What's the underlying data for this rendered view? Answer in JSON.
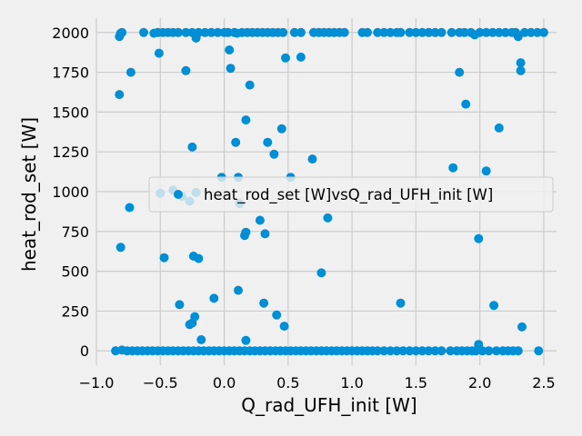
{
  "chart_data": {
    "type": "scatter",
    "title": "",
    "xlabel": "Q_rad_UFH_init [W]",
    "ylabel": "heat_rod_set [W]",
    "xlim": [
      -1.0,
      2.6
    ],
    "ylim": [
      -90,
      2090
    ],
    "xticks": [
      "−1.0",
      "−0.5",
      "0.0",
      "0.5",
      "1.0",
      "1.5",
      "2.0",
      "2.5"
    ],
    "xtick_values": [
      -1.0,
      -0.5,
      0.0,
      0.5,
      1.0,
      1.5,
      2.0,
      2.5
    ],
    "yticks": [
      "0",
      "250",
      "500",
      "750",
      "1000",
      "1250",
      "1500",
      "1750",
      "2000"
    ],
    "ytick_values": [
      0,
      250,
      500,
      750,
      1000,
      1250,
      1500,
      1750,
      2000
    ],
    "grid": true,
    "legend_position": "center-right",
    "series": [
      {
        "name": "heat_rod_set [W]vsQ_rad_UFH_init [W]",
        "color": "#008fd5",
        "points": [
          [
            -0.82,
            1975
          ],
          [
            -0.81,
            1995
          ],
          [
            -0.8,
            2000
          ],
          [
            -0.63,
            2000
          ],
          [
            -0.55,
            1995
          ],
          [
            -0.52,
            2000
          ],
          [
            -0.48,
            2000
          ],
          [
            -0.44,
            2000
          ],
          [
            -0.4,
            2000
          ],
          [
            -0.36,
            2000
          ],
          [
            -0.3,
            2000
          ],
          [
            -0.25,
            2000
          ],
          [
            -0.22,
            1965
          ],
          [
            -0.2,
            2000
          ],
          [
            -0.15,
            2000
          ],
          [
            -0.1,
            2000
          ],
          [
            -0.05,
            2000
          ],
          [
            0.0,
            2000
          ],
          [
            0.03,
            2000
          ],
          [
            0.08,
            2000
          ],
          [
            0.1,
            1995
          ],
          [
            0.14,
            2000
          ],
          [
            0.18,
            2000
          ],
          [
            0.22,
            2000
          ],
          [
            0.26,
            2000
          ],
          [
            0.3,
            2000
          ],
          [
            0.34,
            2000
          ],
          [
            0.38,
            2000
          ],
          [
            0.42,
            2000
          ],
          [
            0.46,
            2000
          ],
          [
            0.55,
            2000
          ],
          [
            0.6,
            2000
          ],
          [
            0.7,
            2000
          ],
          [
            0.74,
            2000
          ],
          [
            0.78,
            2000
          ],
          [
            0.82,
            2000
          ],
          [
            0.86,
            2000
          ],
          [
            0.9,
            2000
          ],
          [
            0.94,
            2000
          ],
          [
            1.08,
            2000
          ],
          [
            1.12,
            2000
          ],
          [
            1.2,
            2000
          ],
          [
            1.25,
            2000
          ],
          [
            1.3,
            2000
          ],
          [
            1.35,
            2000
          ],
          [
            1.38,
            2000
          ],
          [
            1.45,
            2000
          ],
          [
            1.5,
            2000
          ],
          [
            1.55,
            2000
          ],
          [
            1.6,
            2000
          ],
          [
            1.65,
            2000
          ],
          [
            1.7,
            2000
          ],
          [
            1.78,
            2000
          ],
          [
            1.84,
            2000
          ],
          [
            1.88,
            2000
          ],
          [
            1.93,
            2000
          ],
          [
            1.96,
            1985
          ],
          [
            2.0,
            2000
          ],
          [
            2.05,
            2000
          ],
          [
            2.1,
            2000
          ],
          [
            2.15,
            2000
          ],
          [
            2.2,
            2000
          ],
          [
            2.25,
            2000
          ],
          [
            2.28,
            2000
          ],
          [
            2.3,
            1975
          ],
          [
            2.35,
            2000
          ],
          [
            2.4,
            2000
          ],
          [
            2.45,
            2000
          ],
          [
            2.5,
            2000
          ],
          [
            -0.82,
            1610
          ],
          [
            -0.73,
            1750
          ],
          [
            -0.51,
            1870
          ],
          [
            -0.3,
            1760
          ],
          [
            0.04,
            1890
          ],
          [
            0.05,
            1775
          ],
          [
            0.2,
            1670
          ],
          [
            0.48,
            1840
          ],
          [
            0.6,
            1845
          ],
          [
            1.84,
            1750
          ],
          [
            1.89,
            1550
          ],
          [
            2.15,
            1400
          ],
          [
            2.32,
            1810
          ],
          [
            2.32,
            1760
          ],
          [
            0.17,
            1450
          ],
          [
            0.45,
            1395
          ],
          [
            0.09,
            1310
          ],
          [
            0.34,
            1310
          ],
          [
            -0.25,
            1280
          ],
          [
            0.39,
            1235
          ],
          [
            0.69,
            1205
          ],
          [
            1.79,
            1150
          ],
          [
            2.05,
            1130
          ],
          [
            -0.02,
            1090
          ],
          [
            0.11,
            1090
          ],
          [
            0.52,
            1090
          ],
          [
            -0.4,
            1010
          ],
          [
            -0.5,
            990
          ],
          [
            -0.33,
            970
          ],
          [
            -0.22,
            995
          ],
          [
            -0.27,
            940
          ],
          [
            0.12,
            925
          ],
          [
            -0.74,
            900
          ],
          [
            0.28,
            820
          ],
          [
            0.81,
            835
          ],
          [
            0.16,
            725
          ],
          [
            0.17,
            745
          ],
          [
            0.32,
            735
          ],
          [
            1.99,
            705
          ],
          [
            -0.81,
            650
          ],
          [
            -0.47,
            585
          ],
          [
            -0.24,
            595
          ],
          [
            -0.2,
            580
          ],
          [
            0.76,
            490
          ],
          [
            -0.08,
            330
          ],
          [
            0.11,
            380
          ],
          [
            -0.35,
            290
          ],
          [
            0.31,
            300
          ],
          [
            1.38,
            300
          ],
          [
            2.11,
            285
          ],
          [
            -0.23,
            215
          ],
          [
            0.41,
            225
          ],
          [
            -0.27,
            165
          ],
          [
            -0.25,
            175
          ],
          [
            0.47,
            155
          ],
          [
            2.33,
            150
          ],
          [
            -0.18,
            70
          ],
          [
            0.17,
            65
          ],
          [
            1.99,
            40
          ],
          [
            -0.85,
            0
          ],
          [
            -0.8,
            5
          ],
          [
            -0.76,
            0
          ],
          [
            -0.72,
            0
          ],
          [
            -0.68,
            0
          ],
          [
            -0.64,
            0
          ],
          [
            -0.6,
            0
          ],
          [
            -0.56,
            0
          ],
          [
            -0.52,
            0
          ],
          [
            -0.48,
            0
          ],
          [
            -0.44,
            0
          ],
          [
            -0.4,
            0
          ],
          [
            -0.36,
            0
          ],
          [
            -0.32,
            0
          ],
          [
            -0.28,
            0
          ],
          [
            -0.24,
            0
          ],
          [
            -0.2,
            0
          ],
          [
            -0.16,
            0
          ],
          [
            -0.12,
            0
          ],
          [
            -0.08,
            0
          ],
          [
            -0.04,
            0
          ],
          [
            0.0,
            0
          ],
          [
            0.04,
            0
          ],
          [
            0.08,
            0
          ],
          [
            0.12,
            0
          ],
          [
            0.16,
            0
          ],
          [
            0.2,
            0
          ],
          [
            0.24,
            0
          ],
          [
            0.28,
            0
          ],
          [
            0.32,
            0
          ],
          [
            0.36,
            0
          ],
          [
            0.4,
            0
          ],
          [
            0.44,
            0
          ],
          [
            0.48,
            0
          ],
          [
            0.52,
            0
          ],
          [
            0.56,
            0
          ],
          [
            0.6,
            0
          ],
          [
            0.64,
            0
          ],
          [
            0.68,
            0
          ],
          [
            0.72,
            0
          ],
          [
            0.76,
            0
          ],
          [
            0.8,
            0
          ],
          [
            0.84,
            0
          ],
          [
            0.88,
            0
          ],
          [
            0.92,
            0
          ],
          [
            0.96,
            0
          ],
          [
            1.0,
            0
          ],
          [
            1.04,
            0
          ],
          [
            1.08,
            0
          ],
          [
            1.12,
            0
          ],
          [
            1.16,
            0
          ],
          [
            1.2,
            0
          ],
          [
            1.25,
            0
          ],
          [
            1.3,
            0
          ],
          [
            1.35,
            0
          ],
          [
            1.4,
            0
          ],
          [
            1.45,
            0
          ],
          [
            1.5,
            0
          ],
          [
            1.55,
            0
          ],
          [
            1.6,
            0
          ],
          [
            1.65,
            0
          ],
          [
            1.7,
            0
          ],
          [
            1.77,
            0
          ],
          [
            1.82,
            0
          ],
          [
            1.86,
            0
          ],
          [
            1.9,
            0
          ],
          [
            1.94,
            0
          ],
          [
            1.97,
            0
          ],
          [
            2.02,
            0
          ],
          [
            2.07,
            0
          ],
          [
            2.13,
            0
          ],
          [
            2.18,
            0
          ],
          [
            2.22,
            0
          ],
          [
            2.26,
            0
          ],
          [
            2.3,
            0
          ],
          [
            2.46,
            0
          ]
        ]
      }
    ]
  }
}
